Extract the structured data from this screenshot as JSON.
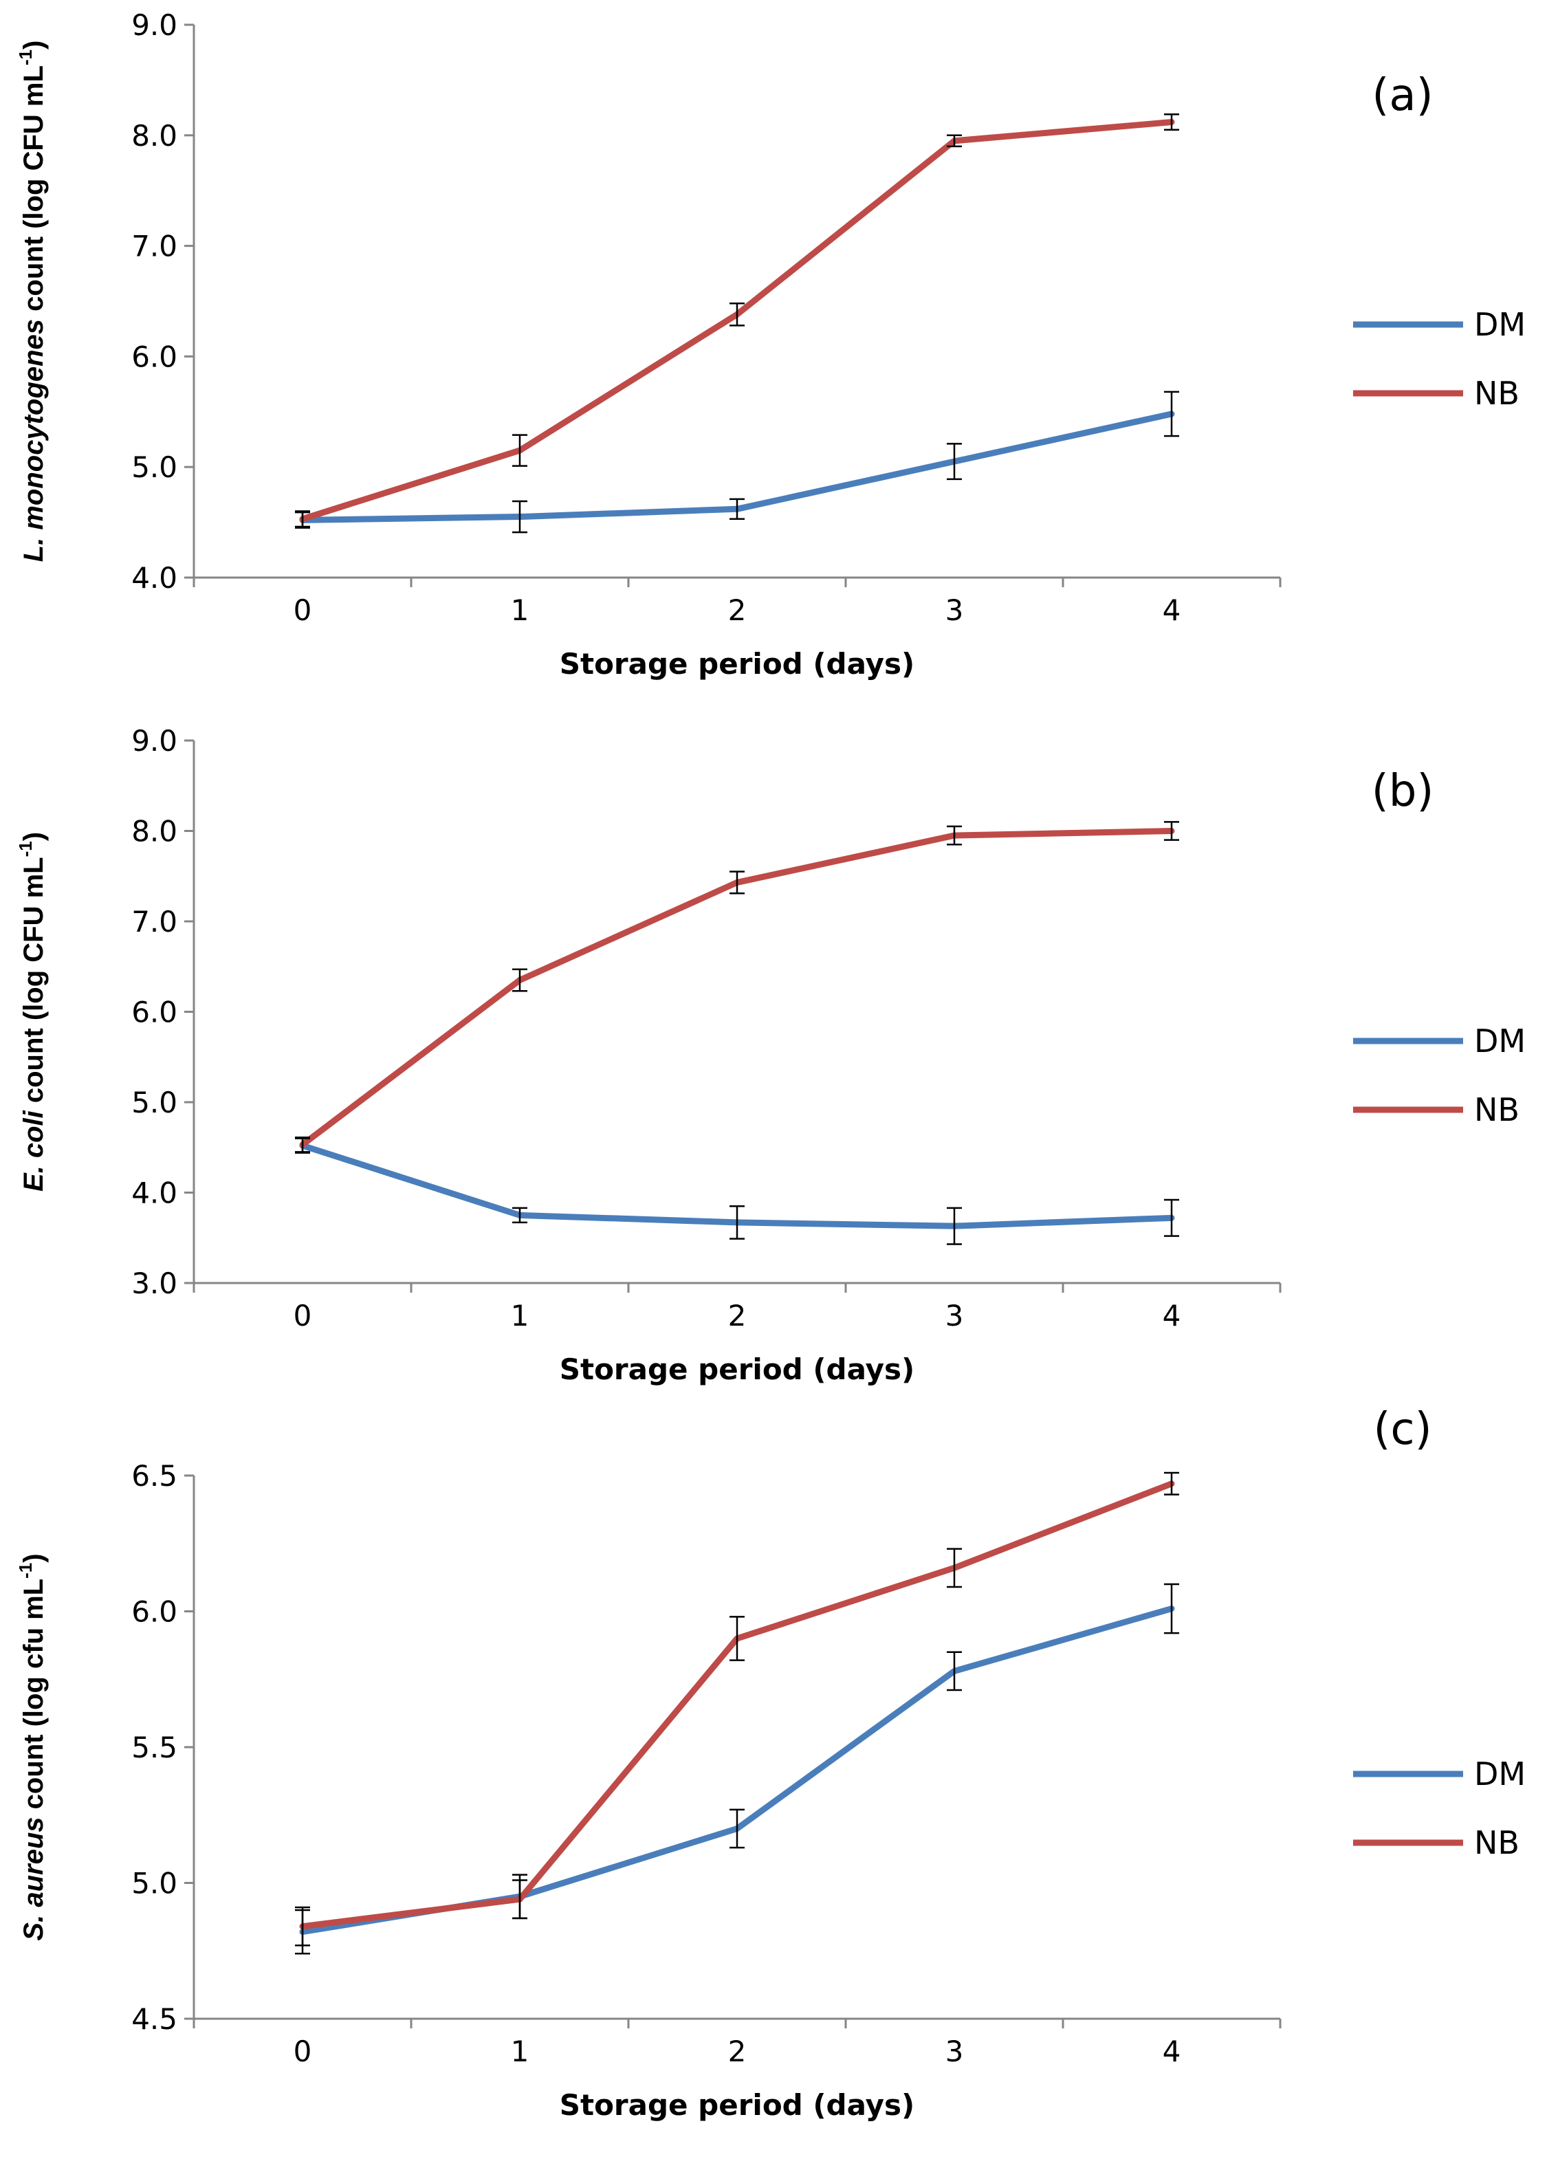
{
  "chart_data": [
    {
      "type": "line",
      "panel_label": "(a)",
      "ylabel_italic": "L. monocytogenes",
      "ylabel_rest": " count (log CFU mL",
      "ylabel_sup": "-1",
      "ylabel_close": ")",
      "xlabel": "Storage period (days)",
      "categories": [
        "0",
        "1",
        "2",
        "3",
        "4"
      ],
      "ylim": [
        4.0,
        9.0
      ],
      "yticks": [
        "4.0",
        "5.0",
        "6.0",
        "7.0",
        "8.0",
        "9.0"
      ],
      "ytick_values": [
        4.0,
        5.0,
        6.0,
        7.0,
        8.0,
        9.0
      ],
      "series": [
        {
          "name": "DM",
          "color": "#4a7ebb",
          "values": [
            4.52,
            4.55,
            4.62,
            5.05,
            5.48
          ],
          "errors": [
            0.07,
            0.14,
            0.09,
            0.16,
            0.2
          ]
        },
        {
          "name": "NB",
          "color": "#be4b48",
          "values": [
            4.53,
            5.15,
            6.38,
            7.95,
            8.12
          ],
          "errors": [
            0.07,
            0.14,
            0.1,
            0.05,
            0.07
          ]
        }
      ]
    },
    {
      "type": "line",
      "panel_label": "(b)",
      "ylabel_italic": "E. coli",
      "ylabel_rest": " count (log CFU mL",
      "ylabel_sup": "-1",
      "ylabel_close": ")",
      "xlabel": "Storage period (days)",
      "categories": [
        "0",
        "1",
        "2",
        "3",
        "4"
      ],
      "ylim": [
        3.0,
        9.0
      ],
      "yticks": [
        "3.0",
        "4.0",
        "5.0",
        "6.0",
        "7.0",
        "8.0",
        "9.0"
      ],
      "ytick_values": [
        3.0,
        4.0,
        5.0,
        6.0,
        7.0,
        8.0,
        9.0
      ],
      "series": [
        {
          "name": "DM",
          "color": "#4a7ebb",
          "values": [
            4.52,
            3.75,
            3.67,
            3.63,
            3.72
          ],
          "errors": [
            0.08,
            0.08,
            0.18,
            0.2,
            0.2
          ]
        },
        {
          "name": "NB",
          "color": "#be4b48",
          "values": [
            4.53,
            6.35,
            7.43,
            7.95,
            8.0
          ],
          "errors": [
            0.08,
            0.12,
            0.12,
            0.1,
            0.1
          ]
        }
      ]
    },
    {
      "type": "line",
      "panel_label": "(c)",
      "ylabel_italic": "S. aureus",
      "ylabel_rest": " count (log cfu mL",
      "ylabel_sup": "-1",
      "ylabel_close": ")",
      "xlabel": "Storage period (days)",
      "categories": [
        "0",
        "1",
        "2",
        "3",
        "4"
      ],
      "ylim": [
        4.5,
        6.5
      ],
      "yticks": [
        "4.5",
        "5.0",
        "5.5",
        "6.0",
        "6.5"
      ],
      "ytick_values": [
        4.5,
        5.0,
        5.5,
        6.0,
        6.5
      ],
      "series": [
        {
          "name": "DM",
          "color": "#4a7ebb",
          "values": [
            4.82,
            4.95,
            5.2,
            5.78,
            6.01
          ],
          "errors": [
            0.08,
            0.08,
            0.07,
            0.07,
            0.09
          ]
        },
        {
          "name": "NB",
          "color": "#be4b48",
          "values": [
            4.84,
            4.94,
            5.9,
            6.16,
            6.47
          ],
          "errors": [
            0.07,
            0.07,
            0.08,
            0.07,
            0.04
          ]
        }
      ]
    }
  ]
}
